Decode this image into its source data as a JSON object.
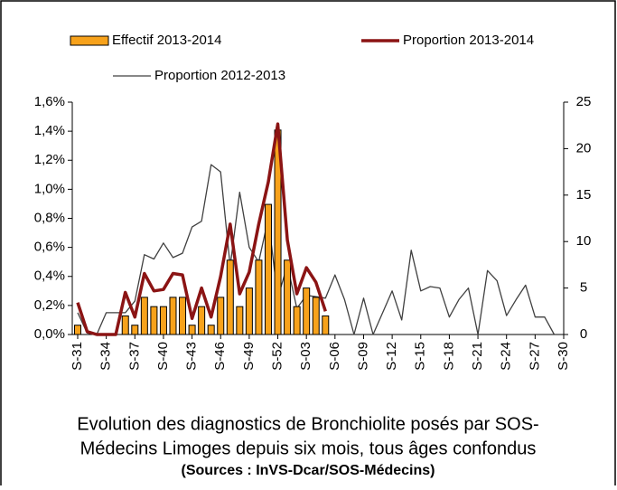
{
  "chart_data": {
    "type": "bar",
    "categories": [
      "S-31",
      null,
      null,
      "S-34",
      null,
      null,
      "S-37",
      null,
      null,
      "S-40",
      null,
      null,
      "S-43",
      null,
      null,
      "S-46",
      null,
      null,
      "S-49",
      null,
      null,
      "S-52",
      null,
      null,
      "S-03",
      null,
      null,
      "S-06",
      null,
      null,
      "S-09",
      null,
      null,
      "S-12",
      null,
      null,
      "S-15",
      null,
      null,
      "S-18",
      null,
      null,
      "S-21",
      null,
      null,
      "S-24",
      null,
      null,
      "S-27",
      null,
      null,
      "S-30"
    ],
    "series": [
      {
        "name": "Effectif 2013-2014",
        "type": "bar",
        "axis": "y2",
        "color": "#f7a21b",
        "values": [
          1,
          0,
          0,
          0,
          0,
          2,
          1,
          4,
          3,
          3,
          4,
          4,
          1,
          3,
          1,
          4,
          8,
          3,
          5,
          8,
          14,
          22,
          8,
          3,
          5,
          4,
          2,
          null,
          null,
          null,
          null,
          null,
          null,
          null,
          null,
          null,
          null,
          null,
          null,
          null,
          null,
          null,
          null,
          null,
          null,
          null,
          null,
          null,
          null,
          null,
          null,
          null
        ]
      },
      {
        "name": "Proportion 2013-2014",
        "type": "line",
        "color": "#8b1414",
        "values": [
          0.22,
          0.02,
          0,
          0,
          0,
          0.29,
          0.12,
          0.42,
          0.3,
          0.31,
          0.42,
          0.41,
          0.11,
          0.32,
          0.12,
          0.4,
          0.76,
          0.28,
          0.43,
          0.76,
          1.05,
          1.45,
          0.65,
          0.28,
          0.46,
          0.36,
          0.16,
          null,
          null,
          null,
          null,
          null,
          null,
          null,
          null,
          null,
          null,
          null,
          null,
          null,
          null,
          null,
          null,
          null,
          null,
          null,
          null,
          null,
          null,
          null,
          null,
          null
        ]
      },
      {
        "name": "Proportion 2012-2013",
        "type": "line",
        "color": "#404040",
        "values": [
          0.15,
          0.01,
          0,
          0.15,
          0.15,
          0.15,
          0.23,
          0.55,
          0.52,
          0.63,
          0.53,
          0.56,
          0.74,
          0.78,
          1.17,
          1.12,
          0.47,
          0.98,
          0.6,
          0.5,
          0.8,
          0.25,
          0.48,
          0.18,
          0.27,
          0.26,
          0.25,
          0.41,
          0.24,
          0,
          0.25,
          0,
          0.15,
          0.3,
          0.1,
          0.58,
          0.3,
          0.33,
          0.32,
          0.12,
          0.24,
          0.32,
          0,
          0.44,
          0.37,
          0.13,
          0.24,
          0.34,
          0.12,
          0.12,
          0,
          null
        ]
      }
    ],
    "ylim": [
      0,
      1.6
    ],
    "yticks": [
      {
        "value": 0,
        "label": "0,0%"
      },
      {
        "value": 0.2,
        "label": "0,2%"
      },
      {
        "value": 0.4,
        "label": "0,4%"
      },
      {
        "value": 0.6,
        "label": "0,6%"
      },
      {
        "value": 0.8,
        "label": "0,8%"
      },
      {
        "value": 1.0,
        "label": "1,0%"
      },
      {
        "value": 1.2,
        "label": "1,2%"
      },
      {
        "value": 1.4,
        "label": "1,4%"
      },
      {
        "value": 1.6,
        "label": "1,6%"
      }
    ],
    "y2lim": [
      0,
      25
    ],
    "y2ticks": [
      0,
      5,
      10,
      15,
      20,
      25
    ],
    "caption": [
      "Evolution des diagnostics de Bronchiolite posés par SOS-",
      "Médecins Limoges depuis six mois, tous âges confondus"
    ],
    "source": "(Sources : InVS-Dcar/SOS-Médecins)"
  }
}
